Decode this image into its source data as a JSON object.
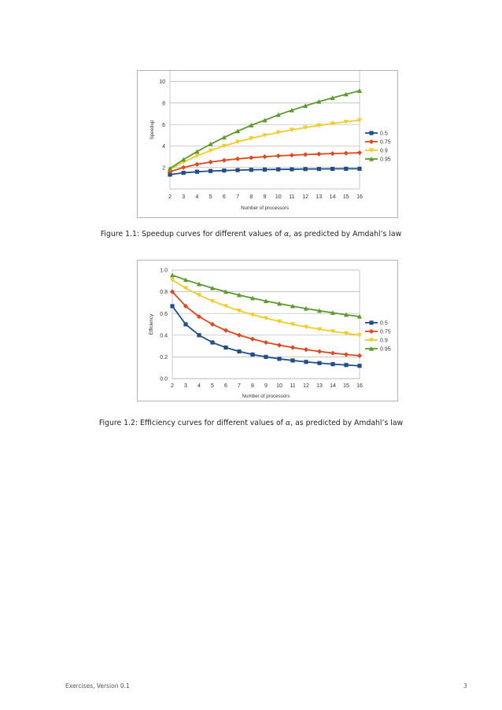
{
  "chart_data": [
    {
      "type": "line",
      "title": "",
      "xlabel": "Number of processors",
      "ylabel": "Speedup",
      "ylim": [
        0,
        11
      ],
      "yticks": [
        2,
        4,
        6,
        8,
        10
      ],
      "grid": "horizontal",
      "legend_position": "right",
      "x": [
        2,
        3,
        4,
        5,
        6,
        7,
        8,
        9,
        10,
        11,
        12,
        13,
        14,
        15,
        16
      ],
      "series": [
        {
          "name": "0.5",
          "color": "#1f4e8c",
          "marker": "square",
          "values": [
            1.33,
            1.5,
            1.6,
            1.67,
            1.71,
            1.75,
            1.78,
            1.8,
            1.82,
            1.83,
            1.85,
            1.86,
            1.87,
            1.88,
            1.88
          ]
        },
        {
          "name": "0.75",
          "color": "#e0471c",
          "marker": "diamond",
          "values": [
            1.6,
            2.0,
            2.29,
            2.5,
            2.67,
            2.8,
            2.91,
            3.0,
            3.08,
            3.14,
            3.2,
            3.25,
            3.29,
            3.33,
            3.37
          ]
        },
        {
          "name": "0.9",
          "color": "#f2cd2a",
          "marker": "triangle-down",
          "values": [
            1.82,
            2.5,
            3.08,
            3.57,
            4.0,
            4.38,
            4.71,
            5.0,
            5.26,
            5.5,
            5.71,
            5.91,
            6.09,
            6.25,
            6.4
          ]
        },
        {
          "name": "0.95",
          "color": "#5a9b2a",
          "marker": "triangle-up",
          "values": [
            1.9,
            2.73,
            3.48,
            4.17,
            4.8,
            5.38,
            5.93,
            6.4,
            6.9,
            7.33,
            7.74,
            8.13,
            8.48,
            8.82,
            9.14
          ]
        }
      ]
    },
    {
      "type": "line",
      "title": "",
      "xlabel": "Number of processors",
      "ylabel": "Efficiency",
      "ylim": [
        0,
        1
      ],
      "yticks": [
        "0.0",
        "0.2",
        "0.4",
        "0.6",
        "0.8",
        "1.0"
      ],
      "grid": "horizontal",
      "legend_position": "right",
      "x": [
        2,
        3,
        4,
        5,
        6,
        7,
        8,
        9,
        10,
        11,
        12,
        13,
        14,
        15,
        16
      ],
      "series": [
        {
          "name": "0.5",
          "color": "#1f4e8c",
          "marker": "square",
          "values": [
            0.667,
            0.5,
            0.4,
            0.333,
            0.286,
            0.25,
            0.222,
            0.2,
            0.182,
            0.167,
            0.154,
            0.143,
            0.133,
            0.125,
            0.118
          ]
        },
        {
          "name": "0.75",
          "color": "#e0471c",
          "marker": "diamond",
          "values": [
            0.8,
            0.667,
            0.571,
            0.5,
            0.444,
            0.4,
            0.364,
            0.333,
            0.308,
            0.286,
            0.267,
            0.25,
            0.235,
            0.222,
            0.211
          ]
        },
        {
          "name": "0.9",
          "color": "#f2cd2a",
          "marker": "triangle-down",
          "values": [
            0.909,
            0.833,
            0.769,
            0.714,
            0.667,
            0.625,
            0.588,
            0.556,
            0.526,
            0.5,
            0.476,
            0.455,
            0.435,
            0.417,
            0.4
          ]
        },
        {
          "name": "0.95",
          "color": "#5a9b2a",
          "marker": "triangle-up",
          "values": [
            0.952,
            0.909,
            0.87,
            0.833,
            0.8,
            0.769,
            0.741,
            0.714,
            0.69,
            0.667,
            0.645,
            0.625,
            0.606,
            0.588,
            0.571
          ]
        }
      ]
    }
  ],
  "captions": {
    "figure1_prefix": "Figure 1.1: Speedup curves for different values of ",
    "figure1_symbol": "α",
    "figure1_suffix": ", as predicted by Amdahl’s law",
    "figure2_prefix": "Figure 1.2: Efficiency curves for different values of ",
    "figure2_symbol": "α",
    "figure2_suffix": ", as predicted by Amdahl’s law"
  },
  "footer": {
    "left": "Exercises, Version 0.1",
    "page_number": "3"
  }
}
